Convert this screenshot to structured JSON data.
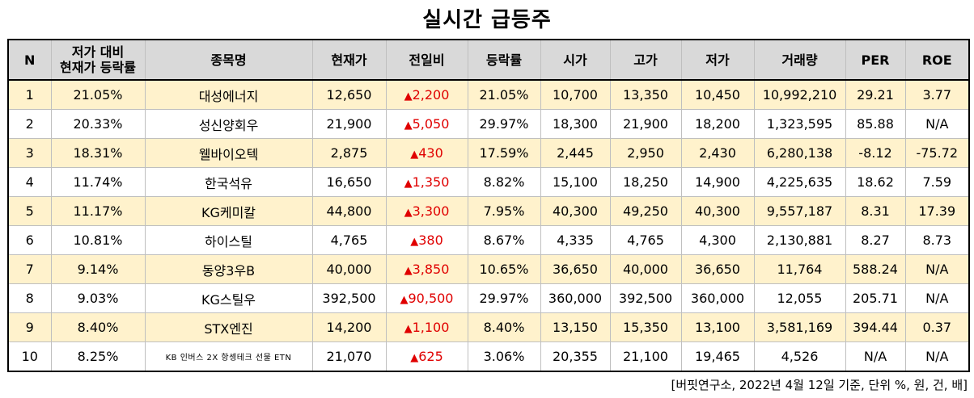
{
  "title": "실시간 급등주",
  "columns": [
    "N",
    "저가 대비\n현재가 등락률",
    "종목명",
    "현재가",
    "전일비",
    "등락률",
    "시가",
    "고가",
    "저가",
    "거래량",
    "PER",
    "ROE"
  ],
  "colors": {
    "header_bg": "#d9d9d9",
    "odd_row_bg": "#fff2cc",
    "up": "#e00000"
  },
  "up_icon": "triangle-up-icon",
  "rows": [
    [
      "1",
      "21.05%",
      "대성에너지",
      "12,650",
      "2,200",
      "21.05%",
      "10,700",
      "13,350",
      "10,450",
      "10,992,210",
      "29.21",
      "3.77"
    ],
    [
      "2",
      "20.33%",
      "성신양회우",
      "21,900",
      "5,050",
      "29.97%",
      "18,300",
      "21,900",
      "18,200",
      "1,323,595",
      "85.88",
      "N/A"
    ],
    [
      "3",
      "18.31%",
      "웰바이오텍",
      "2,875",
      "430",
      "17.59%",
      "2,445",
      "2,950",
      "2,430",
      "6,280,138",
      "-8.12",
      "-75.72"
    ],
    [
      "4",
      "11.74%",
      "한국석유",
      "16,650",
      "1,350",
      "8.82%",
      "15,100",
      "18,250",
      "14,900",
      "4,225,635",
      "18.62",
      "7.59"
    ],
    [
      "5",
      "11.17%",
      "KG케미칼",
      "44,800",
      "3,300",
      "7.95%",
      "40,300",
      "49,250",
      "40,300",
      "9,557,187",
      "8.31",
      "17.39"
    ],
    [
      "6",
      "10.81%",
      "하이스틸",
      "4,765",
      "380",
      "8.67%",
      "4,335",
      "4,765",
      "4,300",
      "2,130,881",
      "8.27",
      "8.73"
    ],
    [
      "7",
      "9.14%",
      "동양3우B",
      "40,000",
      "3,850",
      "10.65%",
      "36,650",
      "40,000",
      "36,650",
      "11,764",
      "588.24",
      "N/A"
    ],
    [
      "8",
      "9.03%",
      "KG스틸우",
      "392,500",
      "90,500",
      "29.97%",
      "360,000",
      "392,500",
      "360,000",
      "12,055",
      "205.71",
      "N/A"
    ],
    [
      "9",
      "8.40%",
      "STX엔진",
      "14,200",
      "1,100",
      "8.40%",
      "13,150",
      "15,350",
      "13,100",
      "3,581,169",
      "394.44",
      "0.37"
    ],
    [
      "10",
      "8.25%",
      "KB 인버스 2X 항셍테크 선물 ETN",
      "21,070",
      "625",
      "3.06%",
      "20,355",
      "21,100",
      "19,465",
      "4,526",
      "N/A",
      "N/A"
    ]
  ],
  "footer": "[버핏연구소, 2022년 4월 12일 기준, 단위 %, 원, 건, 배]"
}
